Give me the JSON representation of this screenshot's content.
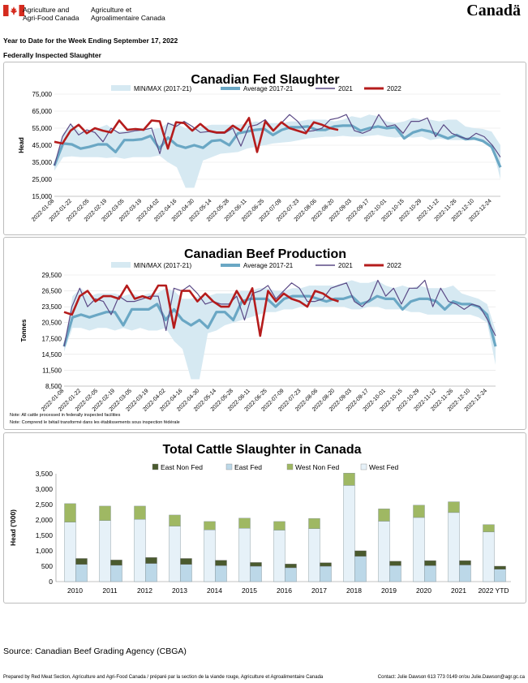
{
  "header": {
    "dept_en": [
      "Agriculture and",
      "Agri-Food Canada"
    ],
    "dept_fr": [
      "Agriculture et",
      "Agroalimentaire Canada"
    ],
    "wordmark": "Canadä",
    "flag_icon": "canada-flag-icon"
  },
  "report": {
    "subtitle1": "Year to Date for the Week Ending September 17, 2022",
    "subtitle2": "Federally Inspected Slaughter"
  },
  "notes": {
    "note1": "Note: All cattle processed in federally inspected facilities",
    "note2": "Note: Comprend le bétail transformé dans les établissements sous inspection fédérale"
  },
  "source": "Source: Canadian Beef Grading Agency (CBGA)",
  "footer": {
    "left": "Prepared by Red Meat Section, Agriculture and Agri-Food Canada / préparé par la section de la viande rouge, Agriculture et Agroalimentaire Canada",
    "right": "Contact: Julie Dawson 613 773 0149 or/ou Julie.Dawson@agr.gc.ca"
  },
  "colors": {
    "band": "#d6e9f2",
    "avg": "#6aa7c4",
    "y2021": "#5b4a86",
    "y2022": "#b51c1c",
    "eastNonFed": "#4a5a2e",
    "eastFed": "#bcd8e8",
    "westNonFed": "#9fb863",
    "westFed": "#e6f1f8"
  },
  "chart_data": [
    {
      "type": "line",
      "title": "Canadian Fed Slaughter",
      "ylabel": "Head",
      "ylim": [
        15000,
        75000
      ],
      "yticks": [
        15000,
        25000,
        35000,
        45000,
        55000,
        65000,
        75000
      ],
      "ytick_labels": [
        "15,000",
        "25,000",
        "35,000",
        "45,000",
        "55,000",
        "65,000",
        "75,000"
      ],
      "legend": [
        "MIN/MAX (2017-21)",
        "Average 2017-21",
        "2021",
        "2022"
      ],
      "x_labels": [
        "2022-01-08",
        "2022-01-22",
        "2022-02-05",
        "2022-02-19",
        "2022-03-05",
        "2022-03-19",
        "2022-04-02",
        "2022-04-16",
        "2022-04-30",
        "2022-05-14",
        "2022-05-28",
        "2022-06-11",
        "2022-06-25",
        "2022-07-09",
        "2022-07-23",
        "2022-08-06",
        "2022-08-20",
        "2022-09-03",
        "2022-09-17",
        "2022-10-01",
        "2022-10-15",
        "2022-10-29",
        "2022-11-12",
        "2022-11-26",
        "2022-12-10",
        "2022-12-24"
      ],
      "series": [
        {
          "name": "MAX",
          "values": [
            34000,
            52000,
            57000,
            53000,
            54000,
            55000,
            57000,
            53000,
            53500,
            54000,
            55000,
            54000,
            55000,
            58000,
            57500,
            55000,
            55000,
            56000,
            57000,
            57000,
            57000,
            57000,
            57500,
            59000,
            58000,
            58000,
            58000,
            59000,
            59000,
            60000,
            60000,
            60000,
            59000,
            60000,
            62000,
            61000,
            63000,
            62000,
            59000,
            58000,
            59000,
            61000,
            60000,
            60000,
            59000,
            60000,
            60000,
            56000,
            55000,
            54500,
            53000,
            45000
          ]
        },
        {
          "name": "MIN",
          "values": [
            30000,
            38000,
            38500,
            38000,
            38000,
            38000,
            37500,
            38000,
            37000,
            38000,
            38000,
            38000,
            39000,
            35000,
            32000,
            20000,
            20000,
            36000,
            38000,
            40000,
            40500,
            41000,
            43000,
            44000,
            45000,
            46000,
            46500,
            47000,
            48000,
            49000,
            49500,
            50000,
            50000,
            50500,
            50000,
            50000,
            50500,
            51000,
            50000,
            49500,
            50000,
            49500,
            50000,
            48000,
            49000,
            48000,
            48000,
            48000,
            48000,
            47000,
            45000,
            25000
          ]
        },
        {
          "name": "Average 2017-21",
          "values": [
            33000,
            46000,
            45500,
            43000,
            44000,
            45500,
            45500,
            41000,
            48000,
            48000,
            48500,
            50500,
            43000,
            49500,
            45000,
            43500,
            45000,
            43500,
            47500,
            48000,
            45000,
            52000,
            53000,
            54000,
            54500,
            51000,
            54000,
            55500,
            55500,
            56000,
            54000,
            54000,
            56000,
            56500,
            56500,
            53500,
            55000,
            56000,
            55000,
            55500,
            49000,
            52500,
            54000,
            53000,
            51000,
            49000,
            51000,
            48500,
            49000,
            47500,
            44000,
            32000
          ]
        },
        {
          "name": "2021",
          "values": [
            33000,
            50000,
            57500,
            51000,
            54000,
            52500,
            47000,
            55000,
            52000,
            52500,
            53500,
            54000,
            55000,
            40000,
            58000,
            56000,
            59000,
            56000,
            52500,
            53000,
            52000,
            52000,
            55000,
            44500,
            56000,
            57000,
            60000,
            54000,
            58000,
            63000,
            59000,
            53000,
            53500,
            55000,
            60000,
            61000,
            63000,
            53500,
            52000,
            54000,
            63000,
            56000,
            57000,
            52000,
            59000,
            59000,
            61000,
            50000,
            57000,
            52000,
            50000,
            48500,
            52000,
            50000,
            45000,
            38000
          ]
        },
        {
          "name": "2022",
          "values": [
            47000,
            46000,
            53500,
            57000,
            52000,
            55000,
            53500,
            52500,
            59500,
            54000,
            54500,
            54000,
            59500,
            59000,
            43000,
            58500,
            58000,
            53500,
            57500,
            53500,
            52500,
            52500,
            56500,
            53500,
            61000,
            41000,
            59000,
            53500,
            58500,
            55000,
            53500,
            52000,
            58500,
            57000,
            55000,
            54000
          ]
        }
      ]
    },
    {
      "type": "line",
      "title": "Canadian Beef Production",
      "ylabel": "Tonnes",
      "ylim": [
        8500,
        29500
      ],
      "yticks": [
        8500,
        11500,
        14500,
        17500,
        20500,
        23500,
        26500,
        29500
      ],
      "ytick_labels": [
        "8,500",
        "11,500",
        "14,500",
        "17,500",
        "20,500",
        "23,500",
        "26,500",
        "29,500"
      ],
      "legend": [
        "MIN/MAX (2017-21)",
        "Average 2017-21",
        "2021",
        "2022"
      ],
      "x_labels": [
        "2022-01-08",
        "2022-01-22",
        "2022-02-05",
        "2022-02-19",
        "2022-03-05",
        "2022-03-19",
        "2022-04-02",
        "2022-04-16",
        "2022-04-30",
        "2022-05-14",
        "2022-05-28",
        "2022-06-11",
        "2022-06-25",
        "2022-07-09",
        "2022-07-23",
        "2022-08-06",
        "2022-08-20",
        "2022-09-03",
        "2022-09-17",
        "2022-10-01",
        "2022-10-15",
        "2022-10-29",
        "2022-11-12",
        "2022-11-26",
        "2022-12-10",
        "2022-12-24"
      ],
      "series": [
        {
          "name": "MAX",
          "values": [
            16000,
            25500,
            27000,
            25500,
            26000,
            26000,
            26000,
            25500,
            26000,
            25500,
            26000,
            26000,
            27000,
            26500,
            25000,
            25000,
            25500,
            25500,
            26000,
            26000,
            26000,
            26500,
            26500,
            27000,
            27000,
            26500,
            26500,
            27000,
            27000,
            27500,
            27500,
            27500,
            27500,
            28000,
            28500,
            28000,
            28000,
            28500,
            27500,
            27000,
            27500,
            27000,
            27500,
            27000,
            27000,
            27000,
            27500,
            26000,
            25500,
            25000,
            24000,
            19000
          ]
        },
        {
          "name": "MIN",
          "values": [
            15000,
            19500,
            19500,
            19000,
            19500,
            19500,
            19000,
            19500,
            19000,
            19500,
            19000,
            19000,
            19500,
            17000,
            15500,
            9800,
            9800,
            18500,
            19000,
            20000,
            20500,
            21000,
            21500,
            22000,
            22500,
            22500,
            23000,
            23000,
            23500,
            23500,
            23500,
            23500,
            23500,
            23500,
            23000,
            23000,
            23500,
            23500,
            23000,
            23000,
            23000,
            22500,
            22500,
            22000,
            22000,
            22000,
            22000,
            22000,
            22000,
            21500,
            20500,
            12500
          ]
        },
        {
          "name": "Average 2017-21",
          "values": [
            16000,
            21500,
            22000,
            21500,
            22000,
            22500,
            22500,
            20000,
            23000,
            23000,
            23000,
            24000,
            21000,
            23000,
            21000,
            20000,
            21000,
            19500,
            22500,
            22500,
            21000,
            24500,
            25000,
            25000,
            25000,
            23500,
            25000,
            25500,
            25500,
            25500,
            25000,
            24500,
            25000,
            25000,
            25500,
            24000,
            24500,
            25500,
            25000,
            25000,
            23000,
            24500,
            25000,
            25000,
            24500,
            23000,
            24500,
            24000,
            24000,
            23500,
            22000,
            16000
          ]
        },
        {
          "name": "2021",
          "values": [
            16000,
            23500,
            27000,
            23500,
            25000,
            24500,
            22000,
            25500,
            24500,
            24500,
            25000,
            25500,
            25500,
            19000,
            27000,
            26500,
            27500,
            26000,
            24000,
            24500,
            24000,
            24000,
            25500,
            21000,
            26000,
            26500,
            27500,
            25000,
            26500,
            28000,
            27000,
            24500,
            24500,
            25000,
            27000,
            27500,
            28000,
            24500,
            23500,
            25000,
            28500,
            25500,
            27000,
            24000,
            27000,
            27000,
            28500,
            23500,
            27000,
            24500,
            24000,
            23000,
            24000,
            23500,
            21000,
            18000
          ]
        },
        {
          "name": "2022",
          "values": [
            22500,
            22000,
            25500,
            26500,
            24500,
            25500,
            25500,
            25000,
            27500,
            25000,
            25500,
            25000,
            27500,
            27500,
            19500,
            26500,
            26500,
            24500,
            26000,
            24500,
            23500,
            23500,
            26500,
            24000,
            27000,
            18000,
            26500,
            24500,
            26000,
            25000,
            24500,
            23500,
            26500,
            26000,
            25000,
            24500
          ]
        }
      ]
    },
    {
      "type": "bar",
      "title": "Total Cattle Slaughter in Canada",
      "ylabel": "Head ('000)",
      "ylim": [
        0,
        3500
      ],
      "yticks": [
        0,
        500,
        1000,
        1500,
        2000,
        2500,
        3000,
        3500
      ],
      "ytick_labels": [
        "0",
        "500",
        "1,000",
        "1,500",
        "2,000",
        "2,500",
        "3,000",
        "3,500"
      ],
      "categories": [
        "2010",
        "2011",
        "2012",
        "2013",
        "2014",
        "2015",
        "2016",
        "2017",
        "2018",
        "2019",
        "2020",
        "2021",
        "2022 YTD"
      ],
      "legend": [
        "East Non Fed",
        "East Fed",
        "West Non Fed",
        "West Fed"
      ],
      "series": [
        {
          "name": "West Fed",
          "values": [
            1930,
            1980,
            2020,
            1800,
            1680,
            1730,
            1670,
            1720,
            3120,
            1960,
            2080,
            2240,
            1610
          ]
        },
        {
          "name": "West Non Fed",
          "values": [
            600,
            470,
            430,
            360,
            270,
            330,
            280,
            330,
            400,
            400,
            400,
            350,
            240
          ]
        },
        {
          "name": "East Fed",
          "values": [
            560,
            530,
            590,
            560,
            520,
            500,
            450,
            500,
            820,
            520,
            520,
            540,
            400
          ]
        },
        {
          "name": "East Non Fed",
          "values": [
            190,
            170,
            190,
            190,
            170,
            120,
            120,
            110,
            180,
            140,
            160,
            140,
            100
          ]
        }
      ]
    }
  ]
}
